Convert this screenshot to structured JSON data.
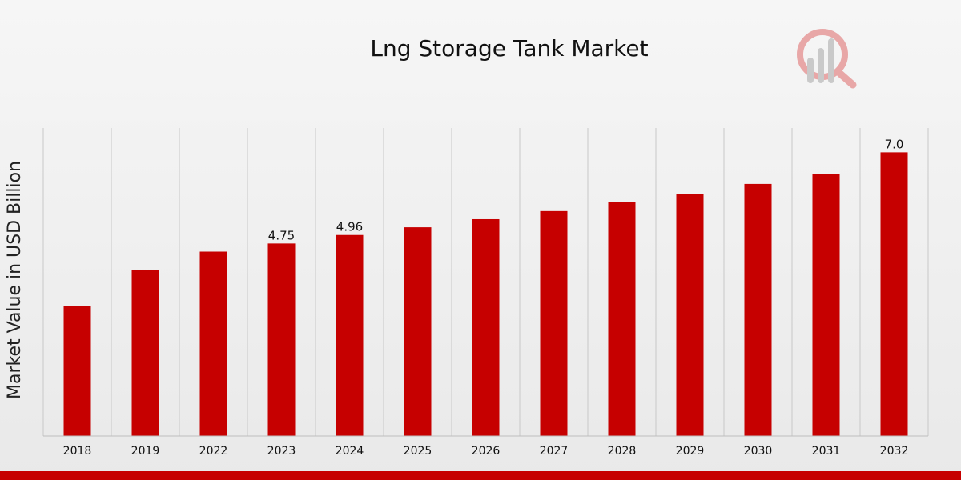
{
  "colors": {
    "bar": "#c60000",
    "grid": "#c8c8c8",
    "bottom_bar": "#c60000",
    "logo": "#c9c9c9",
    "logo_accent": "#e8a7a7"
  },
  "logo": {
    "icon": "market-research-logo-icon"
  },
  "chart_data": {
    "type": "bar",
    "title": "Lng Storage Tank Market",
    "xlabel": "",
    "ylabel": "Market Value in USD Billion",
    "categories": [
      "2018",
      "2019",
      "2022",
      "2023",
      "2024",
      "2025",
      "2026",
      "2027",
      "2028",
      "2029",
      "2030",
      "2031",
      "2032"
    ],
    "values": [
      3.2,
      4.1,
      4.55,
      4.75,
      4.96,
      5.15,
      5.35,
      5.55,
      5.77,
      5.98,
      6.22,
      6.47,
      7.0
    ],
    "data_labels": {
      "3": "4.75",
      "4": "4.96",
      "12": "7.0"
    },
    "ylim": [
      0,
      7.6
    ],
    "grid": true
  }
}
